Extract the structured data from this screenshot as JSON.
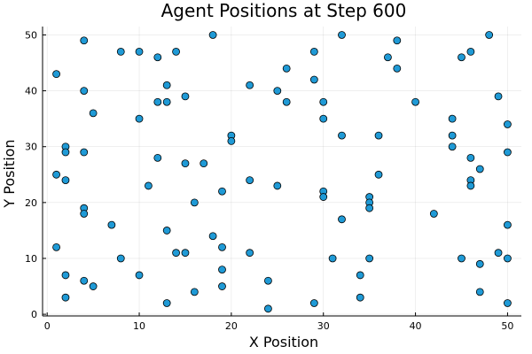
{
  "chart_data": {
    "type": "scatter",
    "title": "Agent Positions at Step 600",
    "xlabel": "X Position",
    "ylabel": "Y Position",
    "xlim": [
      -0.5,
      51.5
    ],
    "ylim": [
      -0.3,
      51.5
    ],
    "xticks": [
      0,
      10,
      20,
      30,
      40,
      50
    ],
    "yticks": [
      0,
      10,
      20,
      30,
      40,
      50
    ],
    "grid": true,
    "legend": "none",
    "marker_color": "#1f9ad6",
    "points": [
      {
        "x": 1,
        "y": 43
      },
      {
        "x": 1,
        "y": 25
      },
      {
        "x": 1,
        "y": 12
      },
      {
        "x": 2,
        "y": 30
      },
      {
        "x": 2,
        "y": 29
      },
      {
        "x": 2,
        "y": 24
      },
      {
        "x": 2,
        "y": 7
      },
      {
        "x": 2,
        "y": 3
      },
      {
        "x": 4,
        "y": 49
      },
      {
        "x": 4,
        "y": 40
      },
      {
        "x": 4,
        "y": 29
      },
      {
        "x": 4,
        "y": 19
      },
      {
        "x": 4,
        "y": 18
      },
      {
        "x": 4,
        "y": 6
      },
      {
        "x": 5,
        "y": 36
      },
      {
        "x": 5,
        "y": 5
      },
      {
        "x": 7,
        "y": 16
      },
      {
        "x": 8,
        "y": 47
      },
      {
        "x": 8,
        "y": 10
      },
      {
        "x": 10,
        "y": 47
      },
      {
        "x": 10,
        "y": 35
      },
      {
        "x": 10,
        "y": 7
      },
      {
        "x": 11,
        "y": 23
      },
      {
        "x": 12,
        "y": 46
      },
      {
        "x": 12,
        "y": 38
      },
      {
        "x": 12,
        "y": 28
      },
      {
        "x": 13,
        "y": 41
      },
      {
        "x": 13,
        "y": 38
      },
      {
        "x": 13,
        "y": 15
      },
      {
        "x": 13,
        "y": 2
      },
      {
        "x": 14,
        "y": 47
      },
      {
        "x": 14,
        "y": 11
      },
      {
        "x": 15,
        "y": 39
      },
      {
        "x": 15,
        "y": 27
      },
      {
        "x": 15,
        "y": 11
      },
      {
        "x": 16,
        "y": 20
      },
      {
        "x": 16,
        "y": 4
      },
      {
        "x": 17,
        "y": 27
      },
      {
        "x": 18,
        "y": 50
      },
      {
        "x": 18,
        "y": 14
      },
      {
        "x": 19,
        "y": 22
      },
      {
        "x": 19,
        "y": 12
      },
      {
        "x": 19,
        "y": 8
      },
      {
        "x": 19,
        "y": 5
      },
      {
        "x": 20,
        "y": 32
      },
      {
        "x": 20,
        "y": 31
      },
      {
        "x": 22,
        "y": 41
      },
      {
        "x": 22,
        "y": 24
      },
      {
        "x": 22,
        "y": 11
      },
      {
        "x": 24,
        "y": 6
      },
      {
        "x": 24,
        "y": 1
      },
      {
        "x": 25,
        "y": 40
      },
      {
        "x": 25,
        "y": 23
      },
      {
        "x": 26,
        "y": 44
      },
      {
        "x": 26,
        "y": 38
      },
      {
        "x": 29,
        "y": 47
      },
      {
        "x": 29,
        "y": 42
      },
      {
        "x": 29,
        "y": 2
      },
      {
        "x": 30,
        "y": 38
      },
      {
        "x": 30,
        "y": 35
      },
      {
        "x": 30,
        "y": 22
      },
      {
        "x": 30,
        "y": 21
      },
      {
        "x": 31,
        "y": 10
      },
      {
        "x": 32,
        "y": 50
      },
      {
        "x": 32,
        "y": 32
      },
      {
        "x": 32,
        "y": 17
      },
      {
        "x": 34,
        "y": 7
      },
      {
        "x": 34,
        "y": 3
      },
      {
        "x": 35,
        "y": 21
      },
      {
        "x": 35,
        "y": 20
      },
      {
        "x": 35,
        "y": 19
      },
      {
        "x": 35,
        "y": 10
      },
      {
        "x": 36,
        "y": 32
      },
      {
        "x": 36,
        "y": 25
      },
      {
        "x": 37,
        "y": 46
      },
      {
        "x": 38,
        "y": 49
      },
      {
        "x": 38,
        "y": 44
      },
      {
        "x": 40,
        "y": 38
      },
      {
        "x": 42,
        "y": 18
      },
      {
        "x": 44,
        "y": 35
      },
      {
        "x": 44,
        "y": 32
      },
      {
        "x": 44,
        "y": 30
      },
      {
        "x": 45,
        "y": 46
      },
      {
        "x": 45,
        "y": 10
      },
      {
        "x": 46,
        "y": 47
      },
      {
        "x": 46,
        "y": 28
      },
      {
        "x": 46,
        "y": 24
      },
      {
        "x": 46,
        "y": 23
      },
      {
        "x": 47,
        "y": 26
      },
      {
        "x": 47,
        "y": 9
      },
      {
        "x": 47,
        "y": 4
      },
      {
        "x": 48,
        "y": 50
      },
      {
        "x": 49,
        "y": 39
      },
      {
        "x": 49,
        "y": 11
      },
      {
        "x": 50,
        "y": 34
      },
      {
        "x": 50,
        "y": 29
      },
      {
        "x": 50,
        "y": 16
      },
      {
        "x": 50,
        "y": 10
      },
      {
        "x": 50,
        "y": 2
      }
    ]
  }
}
